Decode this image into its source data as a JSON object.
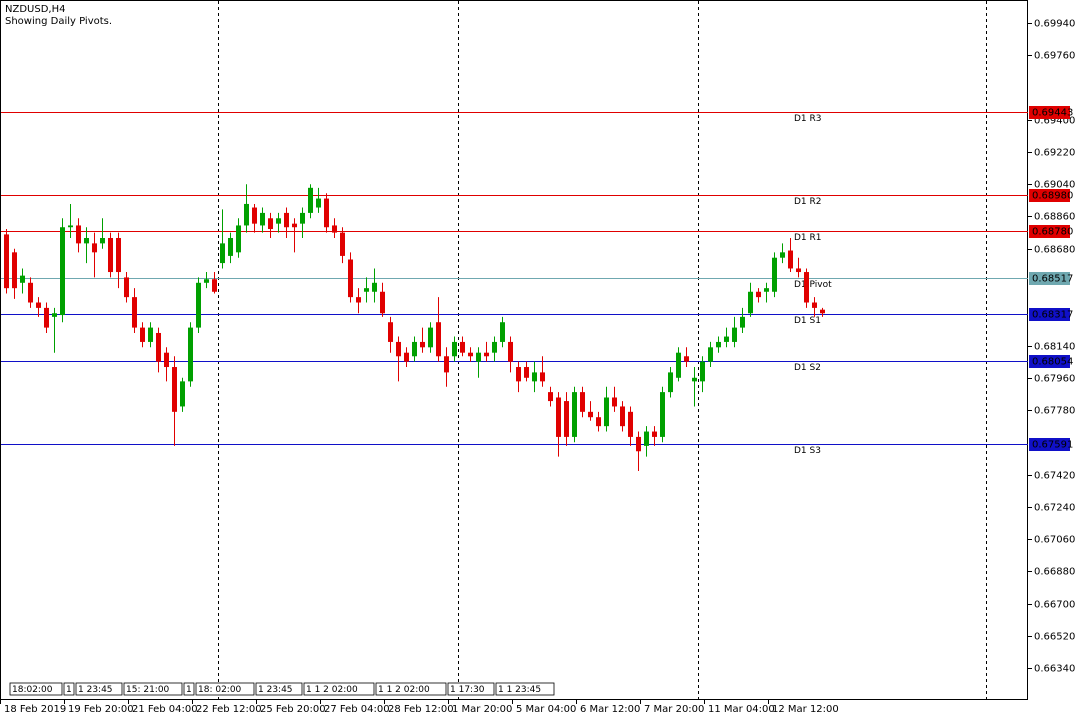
{
  "chart_data": {
    "type": "candlestick",
    "title": "NZDUSD,H4",
    "subtitle": "Showing Daily Pivots.",
    "ylim": [
      0.66162,
      0.70068
    ],
    "yticks": [
      {
        "value": 0.6994,
        "label": "0.69940"
      },
      {
        "value": 0.6976,
        "label": "0.69760"
      },
      {
        "value": 0.694,
        "label": "0.69400"
      },
      {
        "value": 0.6922,
        "label": "0.69220"
      },
      {
        "value": 0.6904,
        "label": "0.69040"
      },
      {
        "value": 0.6886,
        "label": "0.68860"
      },
      {
        "value": 0.6868,
        "label": "0.68680"
      },
      {
        "value": 0.6814,
        "label": "0.68140"
      },
      {
        "value": 0.6796,
        "label": "0.67960"
      },
      {
        "value": 0.6778,
        "label": "0.67780"
      },
      {
        "value": 0.6742,
        "label": "0.67420"
      },
      {
        "value": 0.6724,
        "label": "0.67240"
      },
      {
        "value": 0.6706,
        "label": "0.67060"
      },
      {
        "value": 0.6688,
        "label": "0.66880"
      },
      {
        "value": 0.667,
        "label": "0.66700"
      },
      {
        "value": 0.6652,
        "label": "0.66520"
      },
      {
        "value": 0.6634,
        "label": "0.66340"
      }
    ],
    "x_labels": [
      "18 Feb 2019",
      "19 Feb 20:00",
      "21 Feb 04:00",
      "22 Feb 12:00",
      "25 Feb 20:00",
      "27 Feb 04:00",
      "28 Feb 12:00",
      "1 Mar 20:00",
      "5 Mar 04:00",
      "6 Mar 12:00",
      "7 Mar 20:00",
      "11 Mar 04:00",
      "12 Mar 12:00"
    ],
    "up_color": "#00a000",
    "down_color": "#e00000",
    "pivots": [
      {
        "name": "D1 R3",
        "value": 0.69443,
        "label": "0.69443",
        "color": "#e00000"
      },
      {
        "name": "D1 R2",
        "value": 0.6898,
        "label": "0.68980",
        "color": "#e00000"
      },
      {
        "name": "D1 R1",
        "value": 0.6878,
        "label": "0.68780",
        "color": "#e00000"
      },
      {
        "name": "D1 Pivot",
        "value": 0.68517,
        "label": "0.68517",
        "color": "#6fa8b0"
      },
      {
        "name": "D1 S1",
        "value": 0.68317,
        "label": "0.68317",
        "color": "#1010c8"
      },
      {
        "name": "D1 S2",
        "value": 0.68054,
        "label": "0.68054",
        "color": "#1010c8"
      },
      {
        "name": "D1 S3",
        "value": 0.67591,
        "label": "0.67591",
        "color": "#1010c8"
      }
    ],
    "time_markers": [
      "18:02:00",
      "1",
      "1 23:45",
      "15: 21:00",
      "1",
      "18: 02:00",
      "1 23:45",
      "1 1 2 02:00",
      "1 1 2 02:00",
      "1 17:30",
      "1 1 23:45"
    ],
    "ohlc": [
      [
        0.6876,
        0.6879,
        0.6843,
        0.6846
      ],
      [
        0.6866,
        0.6868,
        0.684,
        0.6846
      ],
      [
        0.6849,
        0.6857,
        0.6843,
        0.6853
      ],
      [
        0.6849,
        0.6852,
        0.6835,
        0.6838
      ],
      [
        0.6838,
        0.6841,
        0.683,
        0.6835
      ],
      [
        0.6835,
        0.6838,
        0.6821,
        0.6824
      ],
      [
        0.683,
        0.6835,
        0.681,
        0.6832
      ],
      [
        0.6831,
        0.6885,
        0.6827,
        0.688
      ],
      [
        0.688,
        0.6893,
        0.6874,
        0.6881
      ],
      [
        0.6881,
        0.6885,
        0.6866,
        0.6871
      ],
      [
        0.6871,
        0.688,
        0.686,
        0.6874
      ],
      [
        0.6871,
        0.6877,
        0.6852,
        0.6866
      ],
      [
        0.6871,
        0.6885,
        0.6868,
        0.6874
      ],
      [
        0.6874,
        0.6877,
        0.6852,
        0.6855
      ],
      [
        0.6874,
        0.6877,
        0.6846,
        0.6855
      ],
      [
        0.6852,
        0.6855,
        0.6838,
        0.6841
      ],
      [
        0.6841,
        0.6846,
        0.6821,
        0.6824
      ],
      [
        0.6824,
        0.6827,
        0.6813,
        0.6816
      ],
      [
        0.6816,
        0.6827,
        0.6813,
        0.6824
      ],
      [
        0.6821,
        0.6824,
        0.6799,
        0.6805
      ],
      [
        0.681,
        0.6813,
        0.6794,
        0.6802
      ],
      [
        0.6802,
        0.6808,
        0.6758,
        0.6777
      ],
      [
        0.678,
        0.6796,
        0.6777,
        0.6794
      ],
      [
        0.6794,
        0.6827,
        0.6791,
        0.6824
      ],
      [
        0.6824,
        0.6852,
        0.6821,
        0.6849
      ],
      [
        0.6849,
        0.6855,
        0.6846,
        0.6851
      ],
      [
        0.6851,
        0.6855,
        0.6843,
        0.6844
      ],
      [
        0.686,
        0.689,
        0.6857,
        0.6871
      ],
      [
        0.6864,
        0.6877,
        0.686,
        0.6874
      ],
      [
        0.6866,
        0.6885,
        0.6863,
        0.6881
      ],
      [
        0.6881,
        0.6904,
        0.6877,
        0.6893
      ],
      [
        0.6891,
        0.6893,
        0.6877,
        0.6882
      ],
      [
        0.6881,
        0.6891,
        0.6877,
        0.6888
      ],
      [
        0.6885,
        0.6888,
        0.6874,
        0.6879
      ],
      [
        0.6882,
        0.6888,
        0.6877,
        0.6885
      ],
      [
        0.6888,
        0.6891,
        0.6874,
        0.688
      ],
      [
        0.6882,
        0.6885,
        0.6866,
        0.688
      ],
      [
        0.6882,
        0.6891,
        0.6874,
        0.6888
      ],
      [
        0.6888,
        0.6904,
        0.6885,
        0.6902
      ],
      [
        0.6891,
        0.6902,
        0.6888,
        0.6896
      ],
      [
        0.6896,
        0.6899,
        0.6877,
        0.688
      ],
      [
        0.6881,
        0.6885,
        0.6874,
        0.6877
      ],
      [
        0.6877,
        0.688,
        0.686,
        0.6864
      ],
      [
        0.6862,
        0.6866,
        0.6838,
        0.6841
      ],
      [
        0.6841,
        0.6846,
        0.6832,
        0.6838
      ],
      [
        0.6844,
        0.6852,
        0.6838,
        0.6846
      ],
      [
        0.6844,
        0.6857,
        0.6838,
        0.6849
      ],
      [
        0.6844,
        0.6849,
        0.683,
        0.6832
      ],
      [
        0.6827,
        0.683,
        0.681,
        0.6816
      ],
      [
        0.6816,
        0.6819,
        0.6794,
        0.6808
      ],
      [
        0.681,
        0.6813,
        0.6802,
        0.6805
      ],
      [
        0.6808,
        0.6819,
        0.6805,
        0.6816
      ],
      [
        0.6816,
        0.6824,
        0.681,
        0.6813
      ],
      [
        0.6813,
        0.6827,
        0.681,
        0.6824
      ],
      [
        0.6827,
        0.6841,
        0.6805,
        0.6808
      ],
      [
        0.6808,
        0.6813,
        0.6791,
        0.6799
      ],
      [
        0.6808,
        0.6819,
        0.6805,
        0.6816
      ],
      [
        0.6816,
        0.6819,
        0.6808,
        0.681
      ],
      [
        0.681,
        0.6813,
        0.6805,
        0.6808
      ],
      [
        0.6805,
        0.6813,
        0.6796,
        0.681
      ],
      [
        0.681,
        0.6816,
        0.6805,
        0.6808
      ],
      [
        0.681,
        0.6819,
        0.6805,
        0.6816
      ],
      [
        0.6816,
        0.683,
        0.6813,
        0.6827
      ],
      [
        0.6816,
        0.6819,
        0.6799,
        0.6805
      ],
      [
        0.6802,
        0.6805,
        0.6788,
        0.6794
      ],
      [
        0.6802,
        0.6805,
        0.6794,
        0.6796
      ],
      [
        0.6794,
        0.6805,
        0.6788,
        0.6799
      ],
      [
        0.6799,
        0.6808,
        0.6791,
        0.6794
      ],
      [
        0.6788,
        0.6791,
        0.678,
        0.6783
      ],
      [
        0.6785,
        0.6788,
        0.6752,
        0.6763
      ],
      [
        0.6783,
        0.6788,
        0.6758,
        0.6763
      ],
      [
        0.6763,
        0.6791,
        0.676,
        0.6788
      ],
      [
        0.6788,
        0.6791,
        0.6774,
        0.6777
      ],
      [
        0.6777,
        0.6783,
        0.6772,
        0.6774
      ],
      [
        0.6774,
        0.6777,
        0.6766,
        0.6769
      ],
      [
        0.6769,
        0.6791,
        0.6766,
        0.6785
      ],
      [
        0.6785,
        0.6791,
        0.6777,
        0.678
      ],
      [
        0.678,
        0.6783,
        0.6766,
        0.6769
      ],
      [
        0.6777,
        0.678,
        0.6758,
        0.6763
      ],
      [
        0.6763,
        0.6766,
        0.6744,
        0.6755
      ],
      [
        0.6758,
        0.6769,
        0.6752,
        0.6766
      ],
      [
        0.6766,
        0.6769,
        0.6758,
        0.6763
      ],
      [
        0.6763,
        0.6791,
        0.676,
        0.6788
      ],
      [
        0.6788,
        0.6802,
        0.6785,
        0.6799
      ],
      [
        0.6796,
        0.6813,
        0.6794,
        0.681
      ],
      [
        0.6808,
        0.6813,
        0.6802,
        0.6805
      ],
      [
        0.6794,
        0.6802,
        0.678,
        0.6796
      ],
      [
        0.6794,
        0.6808,
        0.6788,
        0.6805
      ],
      [
        0.6805,
        0.6816,
        0.6802,
        0.6813
      ],
      [
        0.6813,
        0.6819,
        0.681,
        0.6816
      ],
      [
        0.6816,
        0.6824,
        0.6813,
        0.6819
      ],
      [
        0.6816,
        0.683,
        0.6813,
        0.6824
      ],
      [
        0.6824,
        0.6835,
        0.6821,
        0.683
      ],
      [
        0.6832,
        0.6849,
        0.683,
        0.6844
      ],
      [
        0.6844,
        0.6846,
        0.6838,
        0.6841
      ],
      [
        0.6844,
        0.6849,
        0.6838,
        0.6846
      ],
      [
        0.6844,
        0.6866,
        0.6841,
        0.6863
      ],
      [
        0.6863,
        0.6871,
        0.686,
        0.6866
      ],
      [
        0.6867,
        0.6874,
        0.6855,
        0.6857
      ],
      [
        0.6857,
        0.6863,
        0.6852,
        0.6855
      ],
      [
        0.6855,
        0.6857,
        0.6835,
        0.6838
      ],
      [
        0.6838,
        0.6841,
        0.683,
        0.6835
      ],
      [
        0.6834,
        0.6835,
        0.683,
        0.6832
      ]
    ]
  }
}
